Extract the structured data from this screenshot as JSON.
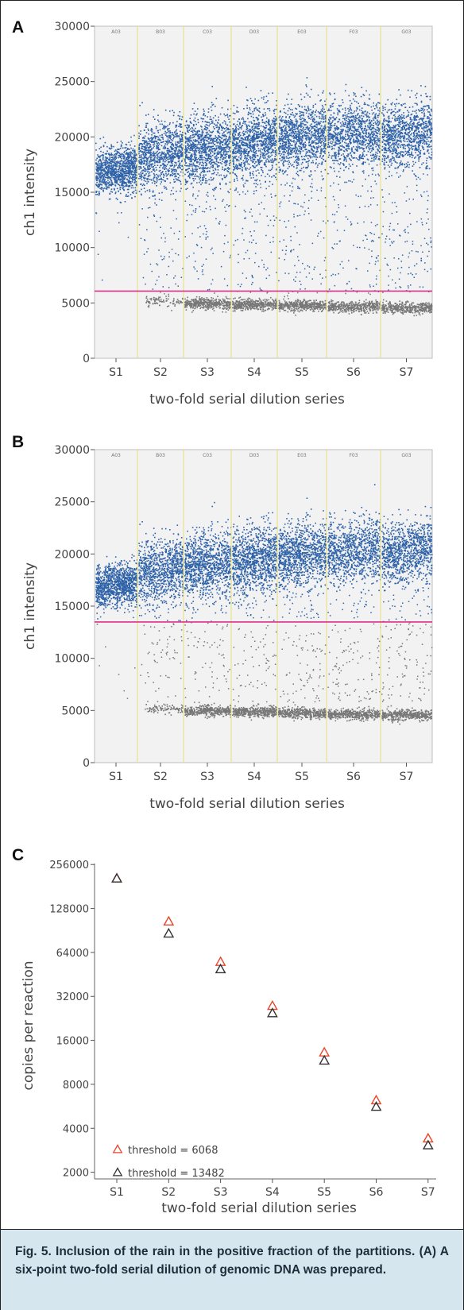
{
  "colors": {
    "positive": "#2e62a8",
    "negative": "#777777",
    "threshold_line": "#e0308a",
    "divider": "#e6e07a",
    "plot_bg": "#f2f2f2",
    "marker_red": "#e8452c",
    "marker_black": "#333333",
    "caption_bg": "#d6e6ef"
  },
  "caption": {
    "label": "Fig. 5.",
    "text": " Inclusion of the rain in the positive fraction of the partitions. (A) A six-point two-fold serial dilution of genomic DNA was prepared."
  },
  "chart_data": [
    {
      "panel": "A",
      "type": "scatter",
      "xlabel": "two-fold serial dilution series",
      "ylabel": "ch1 intensity",
      "ylim": [
        0,
        30000
      ],
      "yticks": [
        "0",
        "5000",
        "10000",
        "15000",
        "20000",
        "25000",
        "30000"
      ],
      "categories": [
        "S1",
        "S2",
        "S3",
        "S4",
        "S5",
        "S6",
        "S7"
      ],
      "well_labels": [
        "A03",
        "B03",
        "C03",
        "D03",
        "E03",
        "F03",
        "G03"
      ],
      "threshold": 6068,
      "positive_band": [
        {
          "center": 17000,
          "spread": 1700
        },
        {
          "center": 18500,
          "spread": 2400
        },
        {
          "center": 19000,
          "spread": 2600
        },
        {
          "center": 19500,
          "spread": 2600
        },
        {
          "center": 20000,
          "spread": 2500
        },
        {
          "center": 20300,
          "spread": 2400
        },
        {
          "center": 20300,
          "spread": 2400
        }
      ],
      "negative_band": [
        {
          "center": null,
          "spread": 0
        },
        {
          "center": 5200,
          "spread": 250
        },
        {
          "center": 5000,
          "spread": 250
        },
        {
          "center": 4900,
          "spread": 250
        },
        {
          "center": 4800,
          "spread": 250
        },
        {
          "center": 4700,
          "spread": 250
        },
        {
          "center": 4600,
          "spread": 250
        }
      ],
      "grid": true
    },
    {
      "panel": "B",
      "type": "scatter",
      "xlabel": "two-fold serial dilution series",
      "ylabel": "ch1 intensity",
      "ylim": [
        0,
        30000
      ],
      "yticks": [
        "0",
        "5000",
        "10000",
        "15000",
        "20000",
        "25000",
        "30000"
      ],
      "categories": [
        "S1",
        "S2",
        "S3",
        "S4",
        "S5",
        "S6",
        "S7"
      ],
      "well_labels": [
        "A03",
        "B03",
        "C03",
        "D03",
        "E03",
        "F03",
        "G03"
      ],
      "threshold": 13482,
      "grid": true
    },
    {
      "panel": "C",
      "type": "scatter",
      "xlabel": "two-fold serial dilution series",
      "ylabel": "copies per reaction",
      "yscale": "log2",
      "ylim": [
        1800,
        260000
      ],
      "yticks": [
        "2000",
        "4000",
        "8000",
        "16000",
        "32000",
        "64000",
        "128000",
        "256000"
      ],
      "categories": [
        "S1",
        "S2",
        "S3",
        "S4",
        "S5",
        "S6",
        "S7"
      ],
      "legend_position": "bottom-left",
      "series": [
        {
          "name": "threshold = 6068",
          "color": "#e8452c",
          "values": [
            205000,
            104000,
            55000,
            27500,
            13200,
            6200,
            3400
          ]
        },
        {
          "name": "threshold = 13482",
          "color": "#333333",
          "values": [
            205000,
            86000,
            49000,
            24500,
            11600,
            5600,
            3050
          ]
        }
      ]
    }
  ]
}
